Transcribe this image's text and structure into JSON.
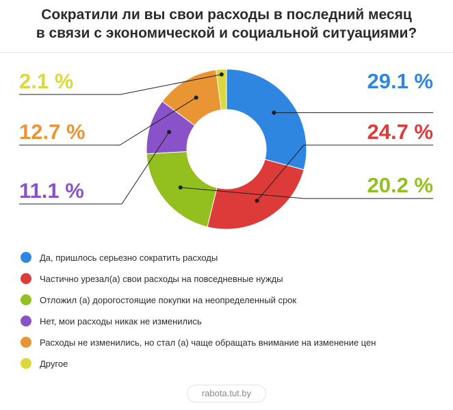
{
  "title_line1": "Сократили ли вы свои расходы в последний месяц",
  "title_line2": "в связи с экономической и социальной ситуациями?",
  "chart_data": {
    "type": "pie",
    "donut": true,
    "categories": [
      "Да, пришлось серьезно сократить расходы",
      "Частично урезал(а) свои расходы на повседневные нужды",
      "Отложил (а) дорогостоящие покупки на неопределенный срок",
      "Нет, мои расходы никак не изменились",
      "Расходы не изменились, но стал (а) чаще обращать внимание на изменение цен",
      "Другое"
    ],
    "values": [
      29.1,
      24.7,
      20.2,
      11.1,
      12.7,
      2.1
    ],
    "value_labels": [
      "29.1 %",
      "24.7 %",
      "20.2 %",
      "11.1 %",
      "12.7 %",
      "2.1 %"
    ],
    "colors": [
      "#2f86e0",
      "#dd3a3a",
      "#93c01f",
      "#8a52c8",
      "#ea9533",
      "#dcd83c"
    ],
    "legend_position": "bottom-left"
  },
  "footer": "rabota.tut.by"
}
